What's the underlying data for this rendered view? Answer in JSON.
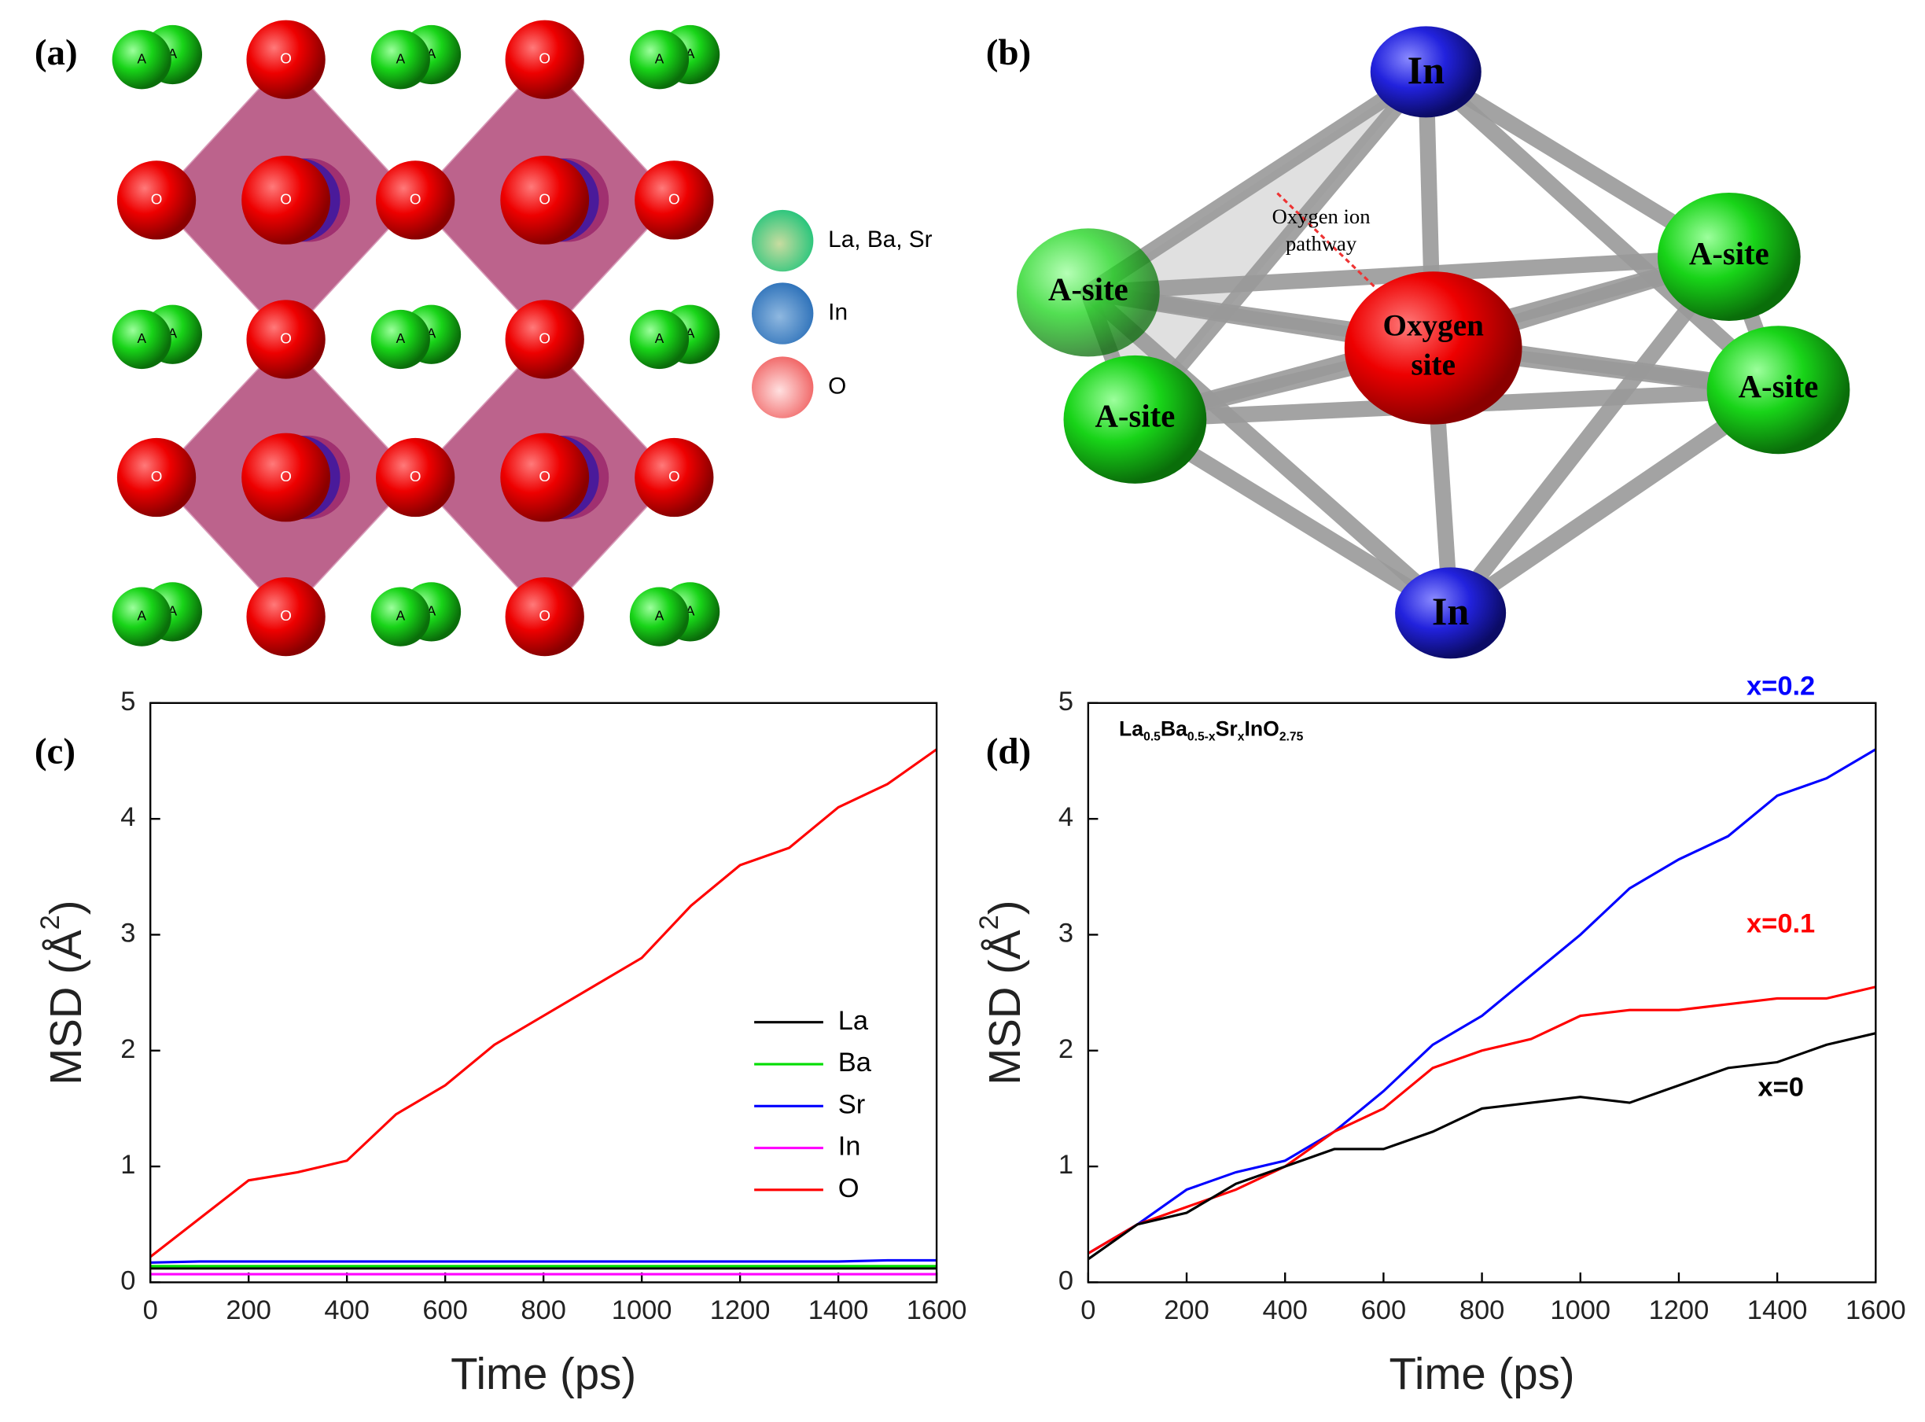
{
  "panel_a": {
    "label": "(a)",
    "atom_o": "O",
    "atom_a": "A",
    "legend": [
      "La, Ba, Sr",
      "In",
      "O"
    ]
  },
  "panel_b": {
    "label": "(b)",
    "in": "In",
    "a_site": "A-site",
    "oxygen_site": [
      "Oxygen",
      "site"
    ],
    "pathway_label": [
      "Oxygen  ion",
      "pathway"
    ]
  },
  "chart_data": [
    {
      "type": "line",
      "label": "(c)",
      "xlabel": "Time (ps)",
      "ylabel": [
        "MSD (Å",
        "2",
        ")"
      ],
      "x": [
        0,
        100,
        200,
        300,
        400,
        500,
        600,
        700,
        800,
        900,
        1000,
        1100,
        1200,
        1300,
        1400,
        1500,
        1600
      ],
      "series": [
        {
          "name": "La",
          "color": "#000000",
          "values": [
            0.12,
            0.12,
            0.12,
            0.12,
            0.12,
            0.12,
            0.12,
            0.12,
            0.12,
            0.12,
            0.12,
            0.12,
            0.12,
            0.12,
            0.12,
            0.12,
            0.12
          ]
        },
        {
          "name": "Ba",
          "color": "#00dd00",
          "values": [
            0.14,
            0.14,
            0.14,
            0.14,
            0.14,
            0.14,
            0.14,
            0.14,
            0.14,
            0.14,
            0.14,
            0.14,
            0.14,
            0.14,
            0.14,
            0.14,
            0.14
          ]
        },
        {
          "name": "Sr",
          "color": "#0000ff",
          "values": [
            0.17,
            0.18,
            0.18,
            0.18,
            0.18,
            0.18,
            0.18,
            0.18,
            0.18,
            0.18,
            0.18,
            0.18,
            0.18,
            0.18,
            0.18,
            0.19,
            0.19
          ]
        },
        {
          "name": "In",
          "color": "#ff00ff",
          "values": [
            0.07,
            0.07,
            0.07,
            0.07,
            0.07,
            0.07,
            0.07,
            0.07,
            0.07,
            0.07,
            0.07,
            0.07,
            0.07,
            0.07,
            0.07,
            0.07,
            0.07
          ]
        },
        {
          "name": "O",
          "color": "#ff0000",
          "values": [
            0.22,
            0.55,
            0.88,
            0.95,
            1.05,
            1.45,
            1.7,
            2.05,
            2.3,
            2.55,
            2.8,
            3.25,
            3.6,
            3.75,
            4.1,
            4.3,
            4.6
          ]
        }
      ],
      "xlim": [
        0,
        1600
      ],
      "ylim": [
        0,
        5
      ],
      "xticks": [
        0,
        200,
        400,
        600,
        800,
        1000,
        1200,
        1400,
        1600
      ],
      "yticks": [
        0,
        1,
        2,
        3,
        4,
        5
      ],
      "legend": "right"
    },
    {
      "type": "line",
      "label": "(d)",
      "xlabel": "Time (ps)",
      "ylabel": [
        "MSD (Å",
        "2",
        ")"
      ],
      "annotation": [
        "La",
        "0.5",
        "Ba",
        "0.5-x",
        "Sr",
        "x",
        "InO",
        "2.75"
      ],
      "x": [
        0,
        100,
        200,
        300,
        400,
        500,
        600,
        700,
        800,
        900,
        1000,
        1100,
        1200,
        1300,
        1400,
        1500,
        1600
      ],
      "series": [
        {
          "name": "x=0.2",
          "color": "#0000ff",
          "values": [
            0.25,
            0.5,
            0.8,
            0.95,
            1.05,
            1.3,
            1.65,
            2.05,
            2.3,
            2.65,
            3.0,
            3.4,
            3.65,
            3.85,
            4.2,
            4.35,
            4.6
          ]
        },
        {
          "name": "x=0.1",
          "color": "#ff0000",
          "values": [
            0.25,
            0.5,
            0.65,
            0.8,
            1.0,
            1.3,
            1.5,
            1.85,
            2.0,
            2.1,
            2.3,
            2.35,
            2.35,
            2.4,
            2.45,
            2.45,
            2.55
          ]
        },
        {
          "name": "x=0",
          "color": "#000000",
          "values": [
            0.2,
            0.5,
            0.6,
            0.85,
            1.0,
            1.15,
            1.15,
            1.3,
            1.5,
            1.55,
            1.6,
            1.55,
            1.7,
            1.85,
            1.9,
            2.05,
            2.15
          ]
        }
      ],
      "xlim": [
        0,
        1600
      ],
      "ylim": [
        0,
        5
      ],
      "xticks": [
        0,
        200,
        400,
        600,
        800,
        1000,
        1200,
        1400,
        1600
      ],
      "yticks": [
        0,
        1,
        2,
        3,
        4,
        5
      ],
      "legend": "inline"
    }
  ]
}
